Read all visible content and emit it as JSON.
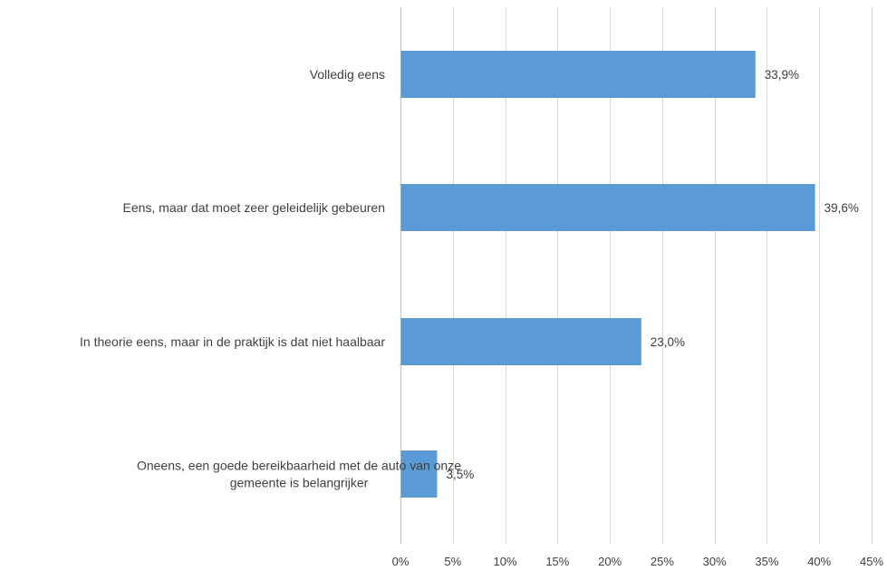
{
  "chart_data": {
    "type": "bar",
    "orientation": "horizontal",
    "title": "",
    "xlabel": "",
    "ylabel": "",
    "categories": [
      [
        "Volledig eens"
      ],
      [
        "Eens, maar dat moet zeer geleidelijk gebeuren"
      ],
      [
        "In theorie eens, maar in de praktijk is dat niet haalbaar"
      ],
      [
        "Oneens, een goede bereikbaarheid met de auto van onze",
        "gemeente is belangrijker"
      ]
    ],
    "values": [
      33.9,
      39.6,
      23.0,
      3.5
    ],
    "data_labels": [
      "33,9%",
      "39,6%",
      "23,0%",
      "3,5%"
    ],
    "xlim": [
      0,
      45
    ],
    "ticks": [
      0,
      5,
      10,
      15,
      20,
      25,
      30,
      35,
      40,
      45
    ],
    "tick_labels": [
      "0%",
      "5%",
      "10%",
      "15%",
      "20%",
      "25%",
      "30%",
      "35%",
      "40%",
      "45%"
    ],
    "grid": true,
    "legend": "none",
    "bar_color": "#5b9bd5",
    "text_color": "#404040",
    "grid_color": "#d9d9d9"
  }
}
